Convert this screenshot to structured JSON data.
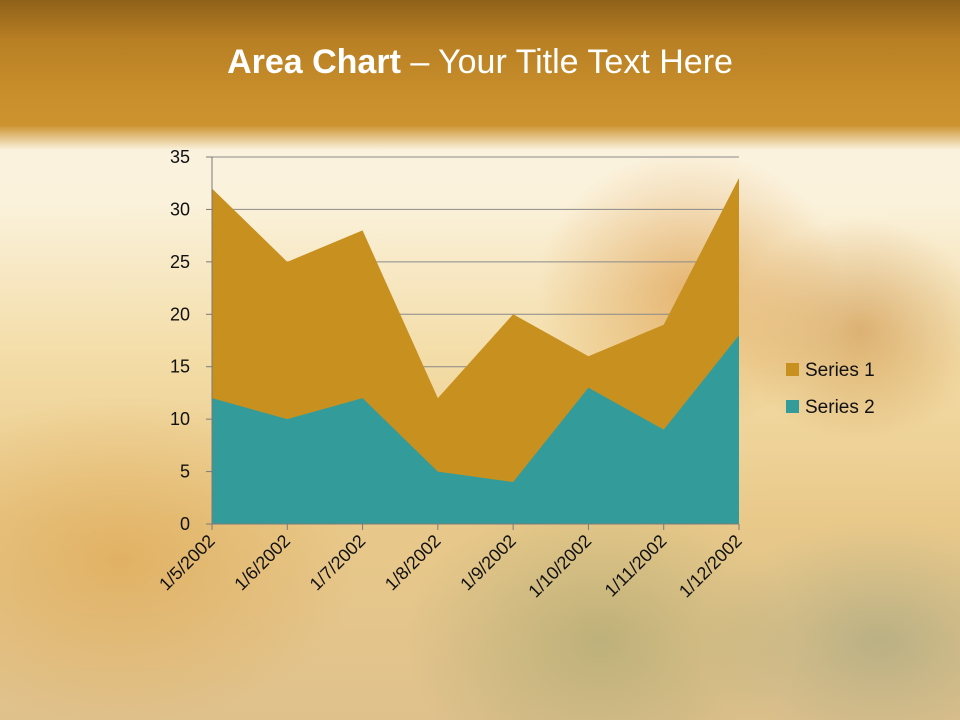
{
  "slide": {
    "title_bold": "Area Chart",
    "title_rest": " – Your Title Text Here"
  },
  "colors": {
    "series1": "#c8901f",
    "series2": "#339c9b",
    "header": "#c48a29"
  },
  "chart_data": {
    "type": "area",
    "stacked": true,
    "title": "Area Chart – Your Title Text Here",
    "xlabel": "",
    "ylabel": "",
    "categories": [
      "1/5/2002",
      "1/6/2002",
      "1/7/2002",
      "1/8/2002",
      "1/9/2002",
      "1/10/2002",
      "1/11/2002",
      "1/12/2002"
    ],
    "series": [
      {
        "name": "Series 1",
        "values": [
          20,
          15,
          16,
          7,
          16,
          3,
          10,
          15
        ],
        "color": "#c8901f"
      },
      {
        "name": "Series 2",
        "values": [
          12,
          10,
          12,
          5,
          4,
          13,
          9,
          18
        ],
        "color": "#339c9b"
      }
    ],
    "ylim": [
      0,
      35
    ],
    "yticks": [
      0,
      5,
      10,
      15,
      20,
      25,
      30,
      35
    ],
    "grid": true,
    "legend": "right"
  }
}
